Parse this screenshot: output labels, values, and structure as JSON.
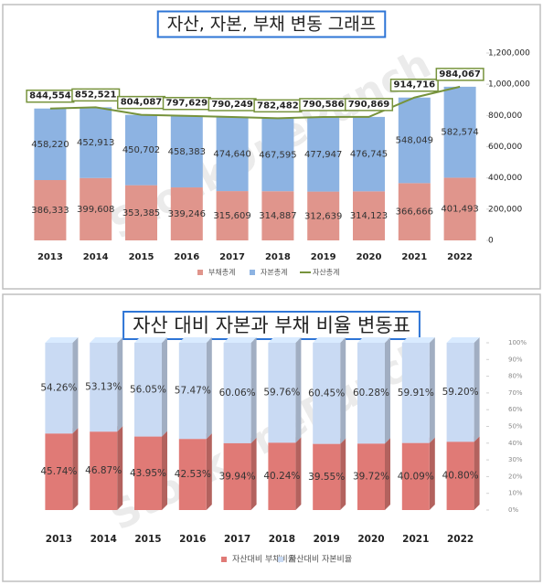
{
  "watermark": "StockOnePunch",
  "chart_data": [
    {
      "type": "bar",
      "stacked": true,
      "title": "자산, 자본, 부채 변동 그래프",
      "categories": [
        "2013",
        "2014",
        "2015",
        "2016",
        "2017",
        "2018",
        "2019",
        "2020",
        "2021",
        "2022"
      ],
      "series": [
        {
          "name": "부채총계",
          "color": "#e0958c",
          "values": [
            386333,
            399608,
            353385,
            339246,
            315609,
            314887,
            312639,
            314123,
            366666,
            401493
          ],
          "value_labels": [
            "386,333",
            "399,608",
            "353,385",
            "339,246",
            "315,609",
            "314,887",
            "312,639",
            "314,123",
            "366,666",
            "401,493"
          ]
        },
        {
          "name": "자본총계",
          "color": "#8db3e2",
          "values": [
            458220,
            452913,
            450702,
            458383,
            474640,
            467595,
            477947,
            476745,
            548049,
            582574
          ],
          "value_labels": [
            "458,220",
            "452,913",
            "450,702",
            "458,383",
            "474,640",
            "467,595",
            "477,947",
            "476,745",
            "548,049",
            "582,574"
          ]
        },
        {
          "name": "자산총계",
          "type": "line",
          "color": "#77933c",
          "values": [
            844554,
            852521,
            804087,
            797629,
            790249,
            782482,
            790586,
            790869,
            914716,
            984067
          ],
          "value_labels": [
            "844,554",
            "852,521",
            "804,087",
            "797,629",
            "790,249",
            "782,482",
            "790,586",
            "790,869",
            "914,716",
            "984,067"
          ]
        }
      ],
      "ylim": [
        0,
        1200000
      ],
      "yticks": [
        0,
        {
          "value": 200000,
          "label": "200,000"
        },
        {
          "value": 400000,
          "label": "400,000"
        },
        {
          "value": 600000,
          "label": "600,000"
        },
        {
          "value": 800000,
          "label": "800,000"
        },
        {
          "value": 1000000,
          "label": "1,000,000"
        },
        {
          "value": 1200000,
          "label": "1,200,000"
        }
      ],
      "grid": false,
      "three_d": false
    },
    {
      "type": "bar",
      "stacked": true,
      "title": "자산 대비 자본과 부채 비율 변동표",
      "categories": [
        "2013",
        "2014",
        "2015",
        "2016",
        "2017",
        "2018",
        "2019",
        "2020",
        "2021",
        "2022"
      ],
      "series": [
        {
          "name": "자산대비 부채비율",
          "color": "#e07a76",
          "values": [
            45.74,
            46.87,
            43.95,
            42.53,
            39.94,
            40.24,
            39.55,
            39.72,
            40.09,
            40.8
          ],
          "value_labels": [
            "45.74%",
            "46.87%",
            "43.95%",
            "42.53%",
            "39.94%",
            "40.24%",
            "39.55%",
            "39.72%",
            "40.09%",
            "40.80%"
          ]
        },
        {
          "name": "자산대비 자본비율",
          "color": "#c9daf3",
          "values": [
            54.26,
            53.13,
            56.05,
            57.47,
            60.06,
            59.76,
            60.45,
            60.28,
            59.91,
            59.2
          ],
          "value_labels": [
            "54.26%",
            "53.13%",
            "56.05%",
            "57.47%",
            "60.06%",
            "59.76%",
            "60.45%",
            "60.28%",
            "59.91%",
            "59.20%"
          ]
        }
      ],
      "ylim": [
        0,
        100
      ],
      "yticks": [
        {
          "value": 0,
          "label": "0%"
        },
        {
          "value": 10,
          "label": "10%"
        },
        {
          "value": 20,
          "label": "20%"
        },
        {
          "value": 30,
          "label": "30%"
        },
        {
          "value": 40,
          "label": "40%"
        },
        {
          "value": 50,
          "label": "50%"
        },
        {
          "value": 60,
          "label": "60%"
        },
        {
          "value": 70,
          "label": "70%"
        },
        {
          "value": 80,
          "label": "80%"
        },
        {
          "value": 90,
          "label": "90%"
        },
        {
          "value": 100,
          "label": "100%"
        }
      ],
      "grid": false,
      "three_d": true
    }
  ]
}
